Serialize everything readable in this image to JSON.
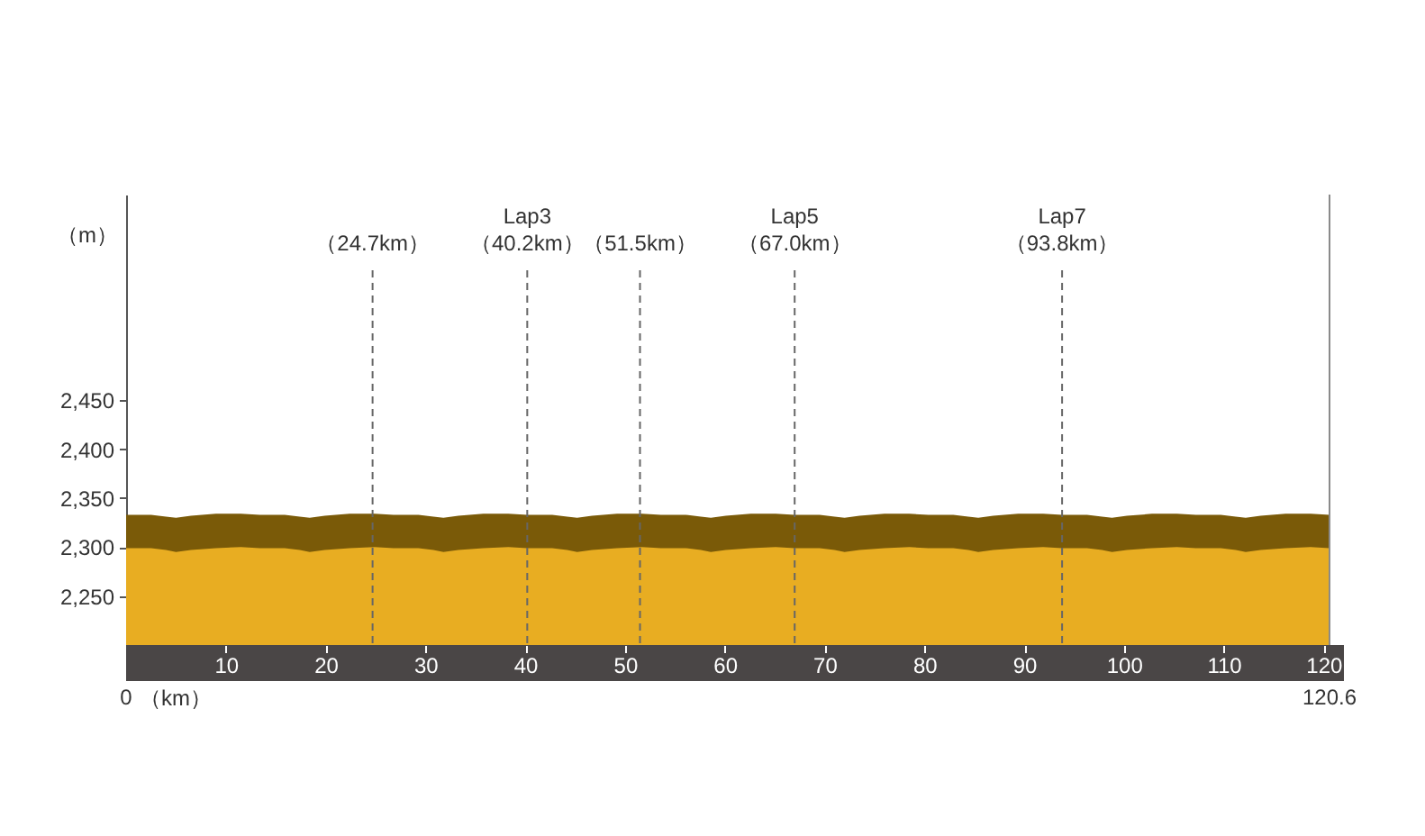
{
  "chart_data": {
    "type": "area",
    "xlabel": "（km）",
    "ylabel": "（m）",
    "x": [
      0,
      2.5,
      4,
      5,
      6.5,
      9,
      11.5,
      13.4,
      15.9,
      17.4,
      18.4,
      19.9,
      22.4,
      24.9,
      26.8,
      29.3,
      30.8,
      31.8,
      33.3,
      35.8,
      38.3,
      40.2,
      42.7,
      44.2,
      45.2,
      46.7,
      49.2,
      51.7,
      53.6,
      56.1,
      57.6,
      58.6,
      60.1,
      62.6,
      65.1,
      67.0,
      69.5,
      71.0,
      72.0,
      73.5,
      76.0,
      78.5,
      80.4,
      82.9,
      84.4,
      85.4,
      86.9,
      89.4,
      91.9,
      93.8,
      96.3,
      97.8,
      98.8,
      100.3,
      102.8,
      105.3,
      107.2,
      109.7,
      111.2,
      112.2,
      113.7,
      116.2,
      118.7,
      120.6
    ],
    "series": [
      {
        "color": "#7a5a08",
        "values": [
          2333,
          2333,
          2331,
          2330,
          2332,
          2334,
          2334,
          2333,
          2333,
          2331,
          2330,
          2332,
          2334,
          2334,
          2333,
          2333,
          2331,
          2330,
          2332,
          2334,
          2334,
          2333,
          2333,
          2331,
          2330,
          2332,
          2334,
          2334,
          2333,
          2333,
          2331,
          2330,
          2332,
          2334,
          2334,
          2333,
          2333,
          2331,
          2330,
          2332,
          2334,
          2334,
          2333,
          2333,
          2331,
          2330,
          2332,
          2334,
          2334,
          2333,
          2333,
          2331,
          2330,
          2332,
          2334,
          2334,
          2333,
          2333,
          2331,
          2330,
          2332,
          2334,
          2334,
          2333
        ]
      },
      {
        "color": "#e8ad22",
        "values": [
          2299,
          2299,
          2297,
          2295,
          2297,
          2299,
          2300,
          2299,
          2299,
          2297,
          2295,
          2297,
          2299,
          2300,
          2299,
          2299,
          2297,
          2295,
          2297,
          2299,
          2300,
          2299,
          2299,
          2297,
          2295,
          2297,
          2299,
          2300,
          2299,
          2299,
          2297,
          2295,
          2297,
          2299,
          2300,
          2299,
          2299,
          2297,
          2295,
          2297,
          2299,
          2300,
          2299,
          2299,
          2297,
          2295,
          2297,
          2299,
          2300,
          2299,
          2299,
          2297,
          2295,
          2297,
          2299,
          2300,
          2299,
          2299,
          2297,
          2295,
          2297,
          2299,
          2300,
          2299
        ]
      }
    ],
    "xlim": [
      0,
      120.6
    ],
    "ylim": [
      2200,
      2660
    ],
    "xticks": [
      10,
      20,
      30,
      40,
      50,
      60,
      70,
      80,
      90,
      100,
      110,
      120
    ],
    "yticks": [
      {
        "value": 2250,
        "label": "2,250"
      },
      {
        "value": 2300,
        "label": "2,300"
      },
      {
        "value": 2350,
        "label": "2,350"
      },
      {
        "value": 2400,
        "label": "2,400"
      },
      {
        "value": 2450,
        "label": "2,450"
      }
    ],
    "annotations": [
      "0",
      "120.6"
    ],
    "ref_lines": [
      {
        "axis": "x",
        "value": 24.7,
        "label": "（24.7km）",
        "color": "#666666",
        "line_style": "dashed"
      },
      {
        "axis": "x",
        "value": 40.2,
        "label": "Lap3\n（40.2km）",
        "color": "#666666",
        "line_style": "dashed"
      },
      {
        "axis": "x",
        "value": 51.5,
        "label": "（51.5km）",
        "color": "#666666",
        "line_style": "dashed"
      },
      {
        "axis": "x",
        "value": 67.0,
        "label": "Lap5\n（67.0km）",
        "color": "#666666",
        "line_style": "dashed"
      },
      {
        "axis": "x",
        "value": 93.8,
        "label": "Lap7\n（93.8km）",
        "color": "#666666",
        "line_style": "dashed"
      }
    ]
  }
}
